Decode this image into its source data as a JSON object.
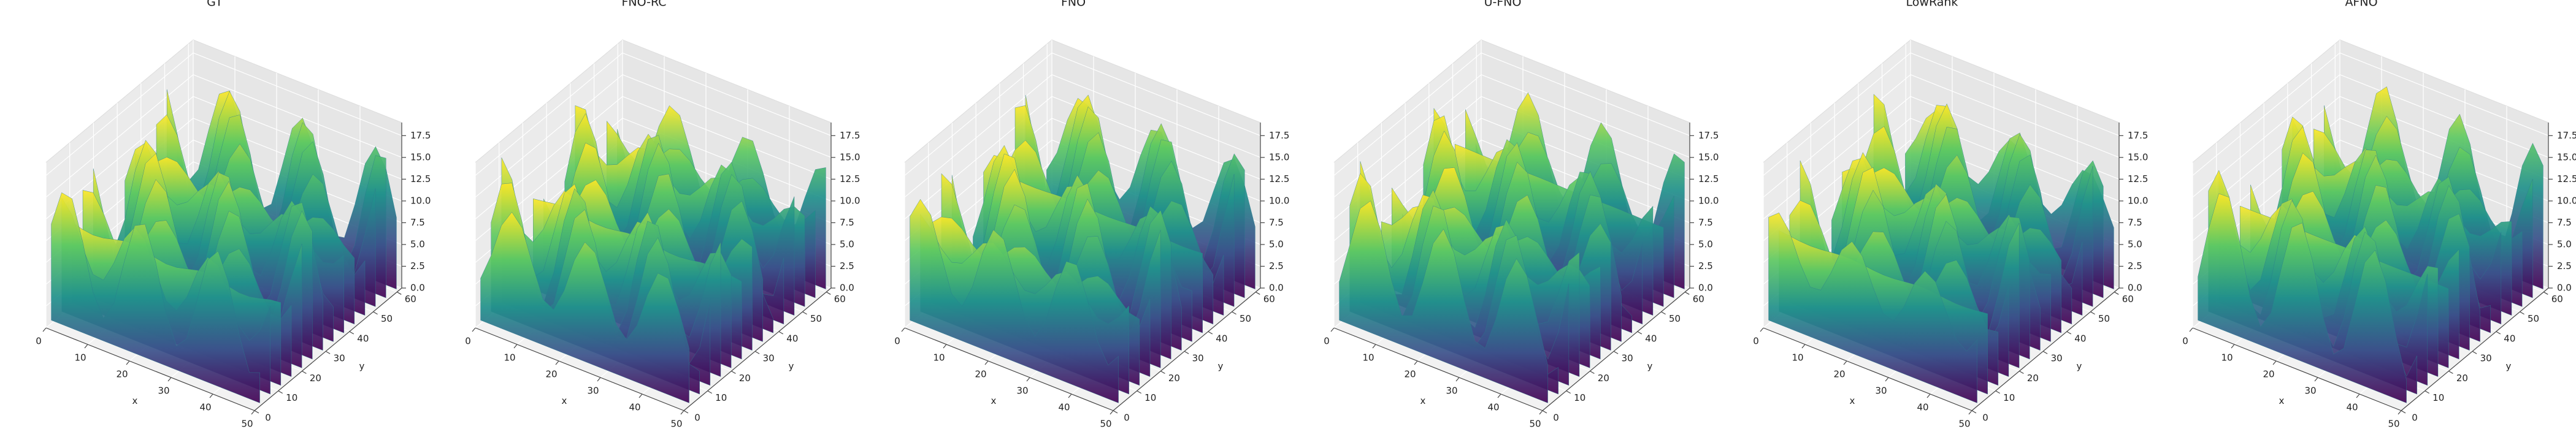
{
  "chart_data": [
    {
      "type": "surface3d",
      "title": "GT",
      "xlabel": "x",
      "ylabel": "y",
      "colormap": "viridis",
      "xlim": [
        0,
        50
      ],
      "ylim": [
        0,
        62
      ],
      "zlim": [
        0,
        19
      ],
      "xticks": [
        0,
        10,
        20,
        30,
        40,
        50
      ],
      "yticks": [
        0,
        10,
        20,
        30,
        40,
        50,
        60
      ],
      "zticks": [
        {
          "value": 0,
          "label": "0.0"
        },
        2.5,
        {
          "value": 5,
          "label": "5.0"
        },
        7.5,
        {
          "value": 10,
          "label": "10.0"
        },
        12.5,
        {
          "value": 15,
          "label": "15.0"
        },
        17.5
      ]
    },
    {
      "type": "surface3d",
      "title": "FNO-RC",
      "xlabel": "x",
      "ylabel": "y",
      "colormap": "viridis",
      "xlim": [
        0,
        50
      ],
      "ylim": [
        0,
        62
      ],
      "zlim": [
        0,
        19
      ],
      "xticks": [
        0,
        10,
        20,
        30,
        40,
        50
      ],
      "yticks": [
        0,
        10,
        20,
        30,
        40,
        50,
        60
      ],
      "zticks": [
        {
          "value": 0,
          "label": "0.0"
        },
        2.5,
        {
          "value": 5,
          "label": "5.0"
        },
        7.5,
        {
          "value": 10,
          "label": "10.0"
        },
        12.5,
        {
          "value": 15,
          "label": "15.0"
        },
        17.5
      ]
    },
    {
      "type": "surface3d",
      "title": "FNO",
      "xlabel": "x",
      "ylabel": "y",
      "colormap": "viridis",
      "xlim": [
        0,
        50
      ],
      "ylim": [
        0,
        62
      ],
      "zlim": [
        0,
        19
      ],
      "xticks": [
        0,
        10,
        20,
        30,
        40,
        50
      ],
      "yticks": [
        0,
        10,
        20,
        30,
        40,
        50,
        60
      ],
      "zticks": [
        {
          "value": 0,
          "label": "0.0"
        },
        2.5,
        {
          "value": 5,
          "label": "5.0"
        },
        7.5,
        {
          "value": 10,
          "label": "10.0"
        },
        12.5,
        {
          "value": 15,
          "label": "15.0"
        },
        17.5
      ]
    },
    {
      "type": "surface3d",
      "title": "U-FNO",
      "xlabel": "x",
      "ylabel": "y",
      "colormap": "viridis",
      "xlim": [
        0,
        50
      ],
      "ylim": [
        0,
        62
      ],
      "zlim": [
        0,
        19
      ],
      "xticks": [
        0,
        10,
        20,
        30,
        40,
        50
      ],
      "yticks": [
        0,
        10,
        20,
        30,
        40,
        50,
        60
      ],
      "zticks": [
        {
          "value": 0,
          "label": "0.0"
        },
        2.5,
        {
          "value": 5,
          "label": "5.0"
        },
        7.5,
        {
          "value": 10,
          "label": "10.0"
        },
        12.5,
        {
          "value": 15,
          "label": "15.0"
        },
        17.5
      ]
    },
    {
      "type": "surface3d",
      "title": "LowRank",
      "xlabel": "x",
      "ylabel": "y",
      "colormap": "viridis",
      "xlim": [
        0,
        50
      ],
      "ylim": [
        0,
        62
      ],
      "zlim": [
        0,
        19
      ],
      "xticks": [
        0,
        10,
        20,
        30,
        40,
        50
      ],
      "yticks": [
        0,
        10,
        20,
        30,
        40,
        50,
        60
      ],
      "zticks": [
        {
          "value": 0,
          "label": "0.0"
        },
        2.5,
        {
          "value": 5,
          "label": "5.0"
        },
        7.5,
        {
          "value": 10,
          "label": "10.0"
        },
        12.5,
        {
          "value": 15,
          "label": "15.0"
        },
        17.5
      ]
    },
    {
      "type": "surface3d",
      "title": "AFNO",
      "xlabel": "x",
      "ylabel": "y",
      "colormap": "viridis",
      "xlim": [
        0,
        50
      ],
      "ylim": [
        0,
        62
      ],
      "zlim": [
        0,
        19
      ],
      "xticks": [
        0,
        10,
        20,
        30,
        40,
        50
      ],
      "yticks": [
        0,
        10,
        20,
        30,
        40,
        50,
        60
      ],
      "zticks": [
        {
          "value": 0,
          "label": "0.0"
        },
        2.5,
        {
          "value": 5,
          "label": "5.0"
        },
        7.5,
        {
          "value": 10,
          "label": "10.0"
        },
        12.5,
        {
          "value": 15,
          "label": "15.0"
        },
        17.5
      ]
    }
  ]
}
